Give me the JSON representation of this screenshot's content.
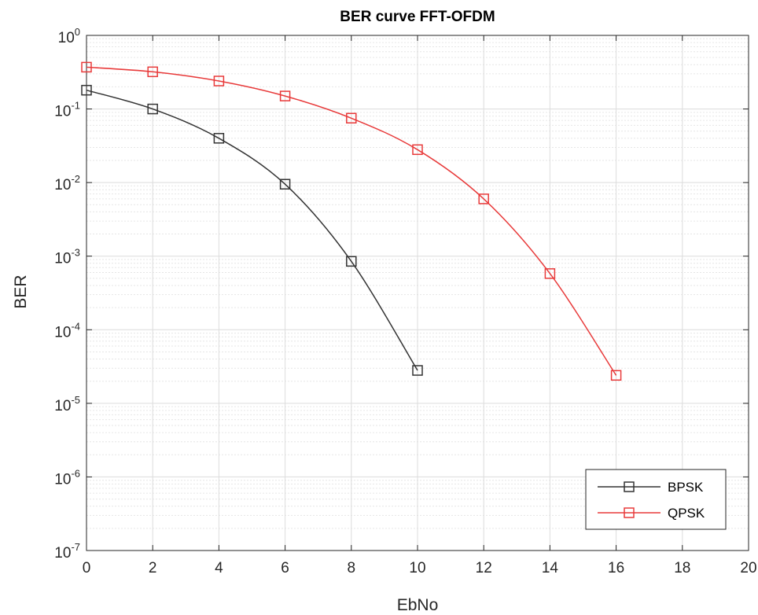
{
  "chart_data": {
    "type": "line",
    "title": "BER curve FFT-OFDM",
    "xlabel": "EbNo",
    "ylabel": "BER",
    "xlim": [
      0,
      20
    ],
    "ylim": [
      1e-07,
      1
    ],
    "yscale": "log",
    "grid": true,
    "minor_grid": true,
    "legend_position": "bottom-right",
    "x_ticks": [
      0,
      2,
      4,
      6,
      8,
      10,
      12,
      14,
      16,
      18,
      20
    ],
    "x_tick_labels": [
      "0",
      "2",
      "4",
      "6",
      "8",
      "10",
      "12",
      "14",
      "16",
      "18",
      "20"
    ],
    "y_ticks": [
      {
        "value": 1.0,
        "base": "10",
        "exp": "0"
      },
      {
        "value": 0.1,
        "base": "10",
        "exp": "-1"
      },
      {
        "value": 0.01,
        "base": "10",
        "exp": "-2"
      },
      {
        "value": 0.001,
        "base": "10",
        "exp": "-3"
      },
      {
        "value": 0.0001,
        "base": "10",
        "exp": "-4"
      },
      {
        "value": 1e-05,
        "base": "10",
        "exp": "-5"
      },
      {
        "value": 1e-06,
        "base": "10",
        "exp": "-6"
      },
      {
        "value": 1e-07,
        "base": "10",
        "exp": "-7"
      }
    ],
    "series": [
      {
        "name": "BPSK",
        "color": "#333333",
        "marker": "square",
        "x": [
          0,
          2,
          4,
          6,
          8,
          10
        ],
        "y": [
          0.18,
          0.1,
          0.04,
          0.0095,
          0.00085,
          2.8e-05
        ]
      },
      {
        "name": "QPSK",
        "color": "#e83a3a",
        "marker": "square",
        "x": [
          0,
          2,
          4,
          6,
          8,
          10,
          12,
          14,
          16
        ],
        "y": [
          0.37,
          0.32,
          0.24,
          0.15,
          0.075,
          0.028,
          0.006,
          0.00058,
          2.4e-05
        ]
      }
    ]
  }
}
